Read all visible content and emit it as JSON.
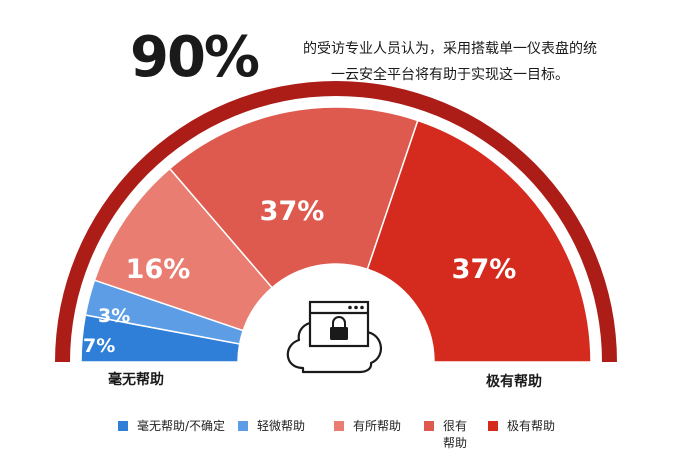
{
  "headline": {
    "stat": "90%",
    "text_line1": "的受访专业人员认为，采用搭载单一仪表盘的统",
    "text_line2": "一云安全平台将有助于实现这一目标。"
  },
  "colors": {
    "brand": "#b21f1a",
    "outer_arc": "#ad1d17",
    "not_helpful": "#2f7fd8",
    "slightly_helpful": "#5d9de6",
    "somewhat_helpful": "#e97d72",
    "very_helpful": "#de5a4e",
    "extremely_helpful": "#d52b1f"
  },
  "chart_data": {
    "type": "pie",
    "variant": "semicircle-donut",
    "center_icon": "cloud-lock-browser-icon",
    "categories": [
      "毫无帮助/不确定",
      "轻微帮助",
      "有所帮助",
      "很有帮助",
      "极有帮助"
    ],
    "values": [
      7,
      3,
      16,
      37,
      37
    ],
    "labels": [
      "7%",
      "3%",
      "16%",
      "37%",
      "37%"
    ],
    "colors": [
      "#2f7fd8",
      "#5d9de6",
      "#e97d72",
      "#de5a4e",
      "#d52b1f"
    ],
    "axis_left_label": "毫无帮助",
    "axis_right_label": "极有帮助"
  },
  "legend": {
    "items": [
      {
        "label": "毫无帮助/不确定",
        "color": "#2f7fd8"
      },
      {
        "label": "轻微帮助",
        "color": "#5d9de6"
      },
      {
        "label": "有所帮助",
        "color": "#e97d72"
      },
      {
        "label": "很有帮助",
        "color": "#de5a4e"
      },
      {
        "label": "极有帮助",
        "color": "#d52b1f"
      }
    ]
  }
}
